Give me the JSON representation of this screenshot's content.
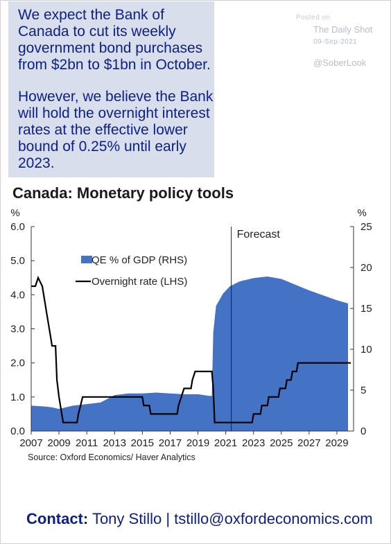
{
  "callout": {
    "p1": [
      "We expect the Bank of",
      "Canada to cut its weekly",
      "government bond purchases",
      "from $2bn to $1bn in October."
    ],
    "p2": [
      "However, we believe the Bank",
      "will hold the overnight interest",
      "rates at the effective lower",
      "bound of 0.25% until early",
      "2023."
    ]
  },
  "watermark": {
    "posted": "Posted on",
    "source": "The Daily Shot",
    "date": "09-Sep-2021",
    "handle": "@SoberLook"
  },
  "title": "Canada: Monetary policy tools",
  "source_note": "Source: Oxford Economics/ Haver Analytics",
  "contact": {
    "label": "Contact:",
    "text": "Tony Stillo | tstillo@oxfordeconomics.com"
  },
  "colors": {
    "qe_fill": "#4472c4",
    "rate_line": "#000000",
    "callout_bg": "#d9deec",
    "callout_text": "#0b1f8a"
  },
  "chart_data": {
    "type": "area",
    "title": "Canada: Monetary policy tools",
    "left_axis": {
      "label": "%",
      "ylim": [
        0,
        6
      ],
      "ticks": [
        "0.0",
        "1.0",
        "2.0",
        "3.0",
        "4.0",
        "5.0",
        "6.0"
      ]
    },
    "right_axis": {
      "label": "%",
      "ylim": [
        0,
        25
      ],
      "ticks": [
        "0",
        "5",
        "10",
        "15",
        "20",
        "25"
      ]
    },
    "xlim": [
      2007,
      2030.2
    ],
    "x_ticks": [
      "2007",
      "2009",
      "2011",
      "2013",
      "2015",
      "2017",
      "2019",
      "2021",
      "2023",
      "2025",
      "2027",
      "2029"
    ],
    "annotation": {
      "text": "Forecast",
      "x": 2021.4
    },
    "legend_position": "upper-left",
    "series": [
      {
        "name": "QE % of GDP (RHS)",
        "axis": "right",
        "kind": "area",
        "points": [
          [
            2007,
            3.1
          ],
          [
            2008,
            3.0
          ],
          [
            2008.5,
            2.9
          ],
          [
            2009,
            2.7
          ],
          [
            2009.5,
            2.9
          ],
          [
            2010,
            3.1
          ],
          [
            2011,
            3.3
          ],
          [
            2012,
            3.5
          ],
          [
            2013,
            4.4
          ],
          [
            2014,
            4.6
          ],
          [
            2015,
            4.6
          ],
          [
            2016,
            4.7
          ],
          [
            2017,
            4.6
          ],
          [
            2018,
            4.5
          ],
          [
            2019,
            4.5
          ],
          [
            2019.8,
            4.3
          ],
          [
            2020,
            4.3
          ],
          [
            2020.1,
            12
          ],
          [
            2020.3,
            15.3
          ],
          [
            2020.8,
            16.8
          ],
          [
            2021.3,
            17.7
          ],
          [
            2022,
            18.3
          ],
          [
            2023,
            18.7
          ],
          [
            2024,
            18.9
          ],
          [
            2025,
            18.6
          ],
          [
            2026,
            17.9
          ],
          [
            2027,
            17.2
          ],
          [
            2028,
            16.6
          ],
          [
            2029,
            16.0
          ],
          [
            2029.8,
            15.6
          ]
        ]
      },
      {
        "name": "Overnight rate (LHS)",
        "axis": "left",
        "kind": "line",
        "points": [
          [
            2007,
            4.25
          ],
          [
            2007.3,
            4.25
          ],
          [
            2007.5,
            4.5
          ],
          [
            2007.8,
            4.25
          ],
          [
            2008.1,
            3.5
          ],
          [
            2008.3,
            3.0
          ],
          [
            2008.5,
            2.5
          ],
          [
            2008.75,
            2.5
          ],
          [
            2008.85,
            1.5
          ],
          [
            2009.0,
            1.0
          ],
          [
            2009.2,
            0.5
          ],
          [
            2009.3,
            0.25
          ],
          [
            2010.3,
            0.25
          ],
          [
            2010.4,
            0.5
          ],
          [
            2010.55,
            0.75
          ],
          [
            2010.7,
            1.0
          ],
          [
            2015.0,
            1.0
          ],
          [
            2015.1,
            0.75
          ],
          [
            2015.5,
            0.75
          ],
          [
            2015.6,
            0.5
          ],
          [
            2017.5,
            0.5
          ],
          [
            2017.6,
            0.75
          ],
          [
            2017.8,
            1.0
          ],
          [
            2018.0,
            1.25
          ],
          [
            2018.5,
            1.25
          ],
          [
            2018.6,
            1.5
          ],
          [
            2018.8,
            1.75
          ],
          [
            2020.0,
            1.75
          ],
          [
            2020.1,
            1.25
          ],
          [
            2020.2,
            0.25
          ],
          [
            2022.9,
            0.25
          ],
          [
            2023.0,
            0.5
          ],
          [
            2023.5,
            0.5
          ],
          [
            2023.6,
            0.75
          ],
          [
            2024.0,
            0.75
          ],
          [
            2024.1,
            1.0
          ],
          [
            2024.8,
            1.0
          ],
          [
            2024.9,
            1.25
          ],
          [
            2025.3,
            1.25
          ],
          [
            2025.4,
            1.5
          ],
          [
            2025.7,
            1.5
          ],
          [
            2025.8,
            1.75
          ],
          [
            2026.1,
            1.75
          ],
          [
            2026.2,
            2.0
          ],
          [
            2030.0,
            2.0
          ]
        ]
      }
    ]
  }
}
